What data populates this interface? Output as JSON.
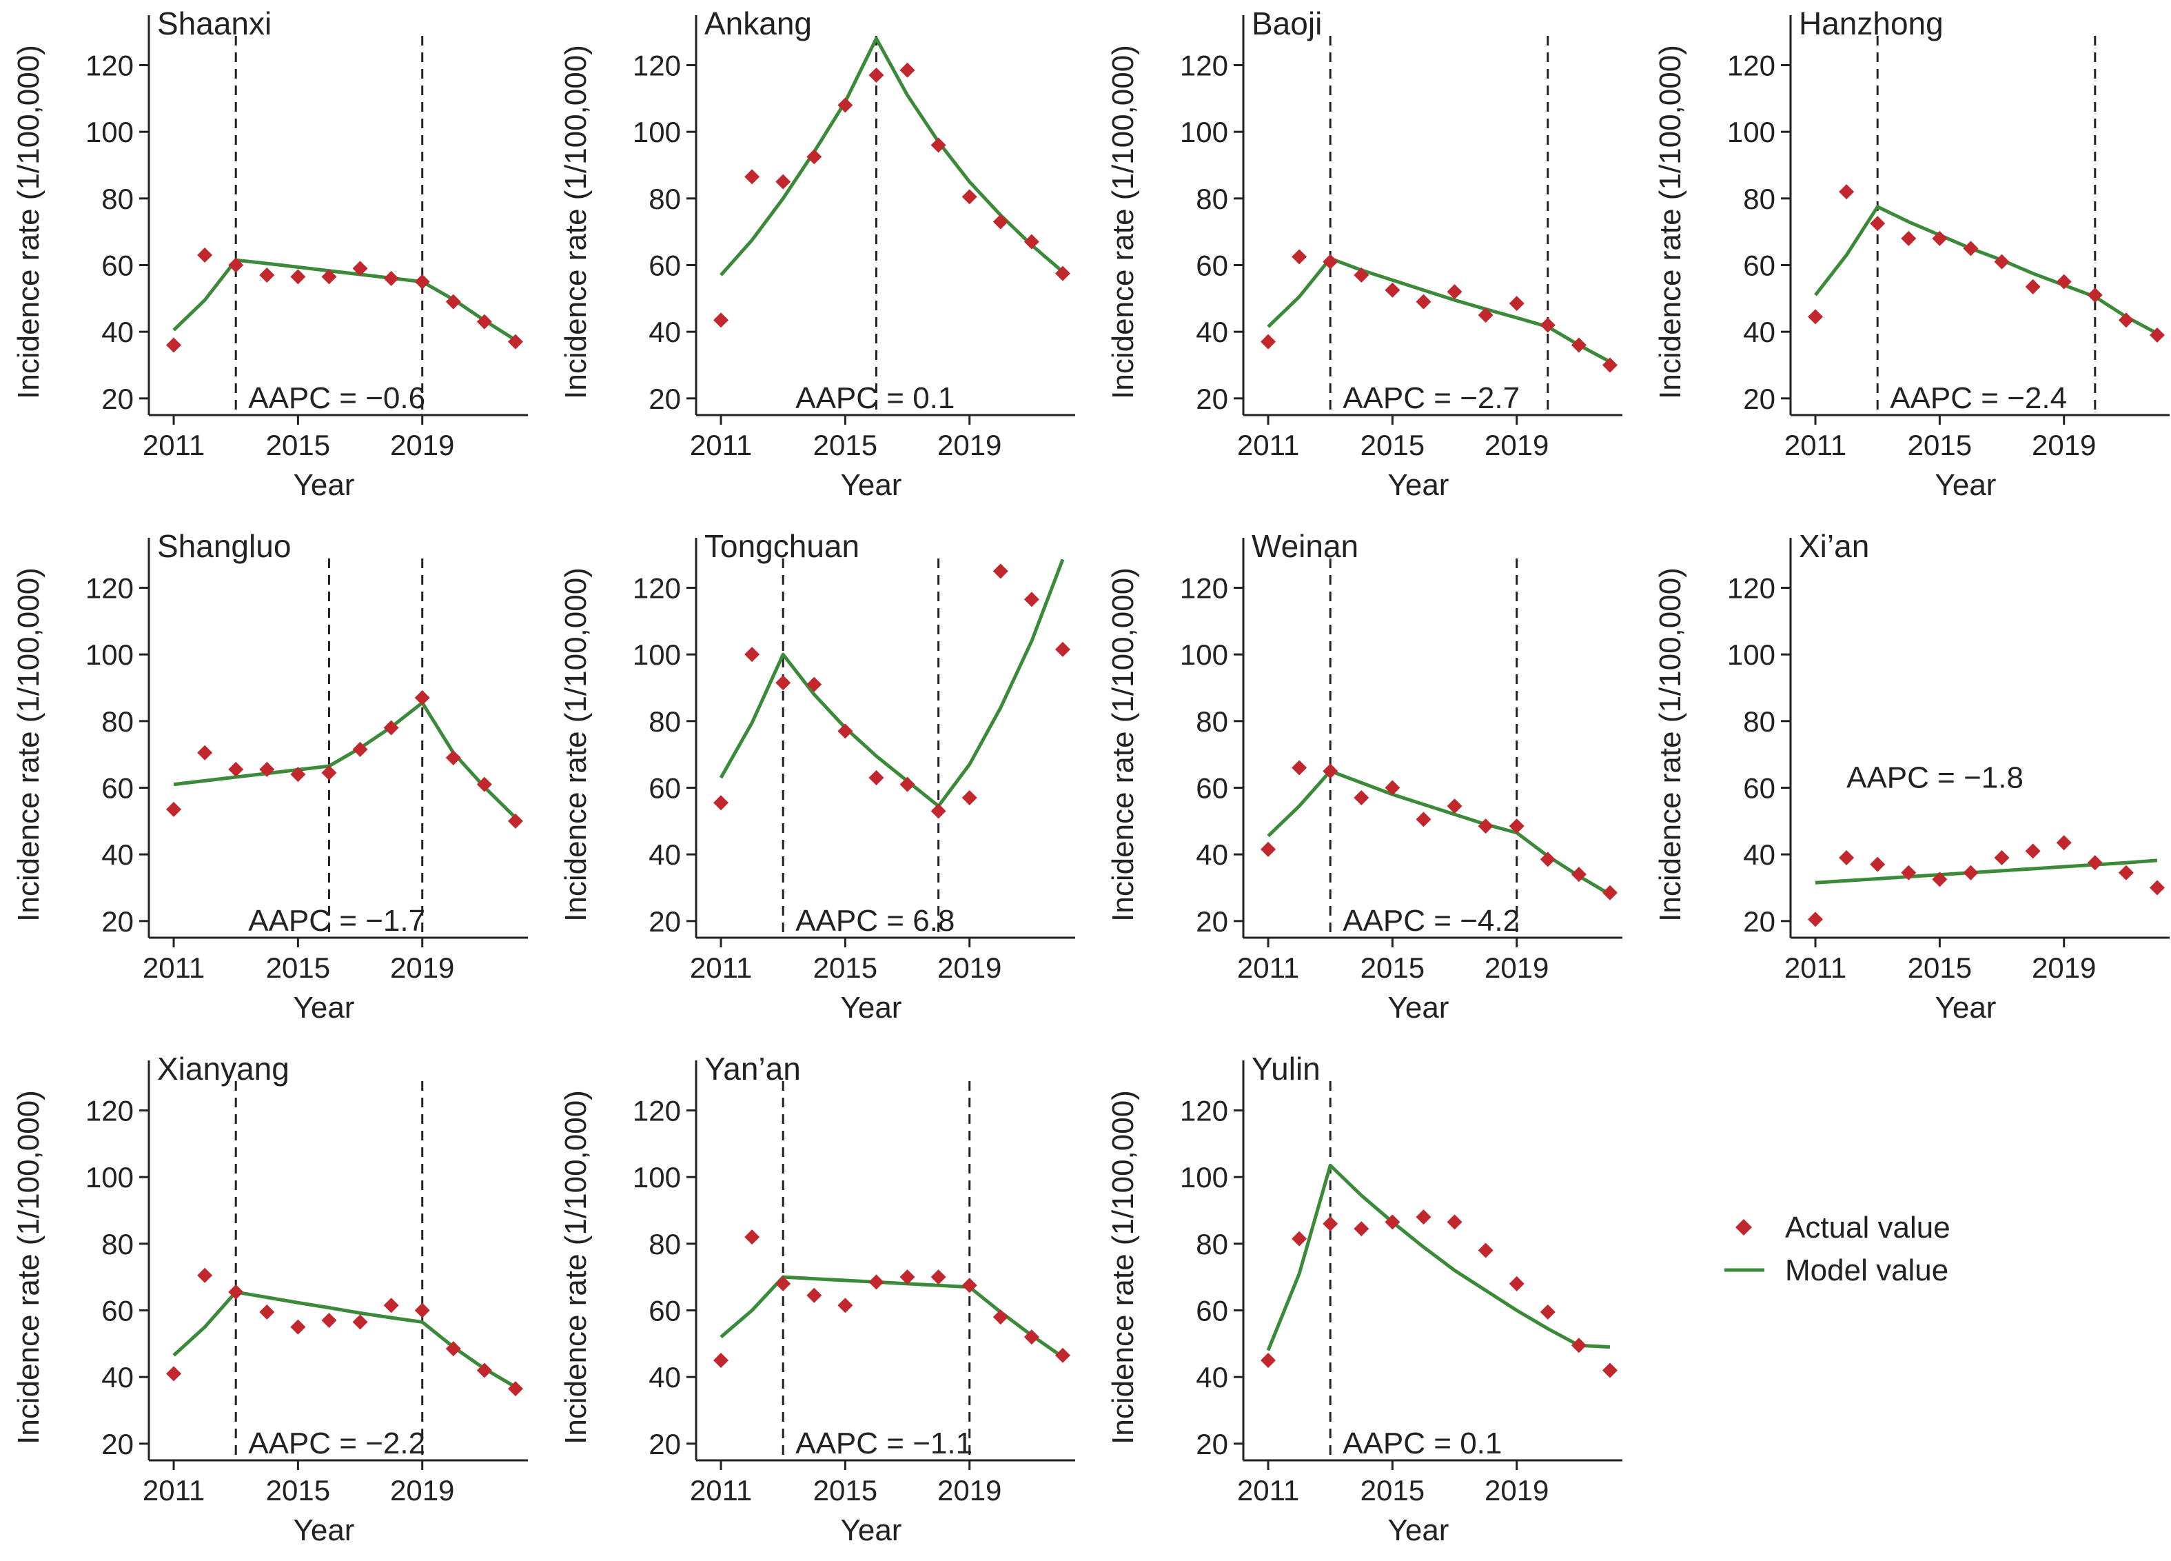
{
  "figure": {
    "xlabel": "Year",
    "ylabel": "Incidence rate (1/100,000)"
  },
  "legend": {
    "actual_label": "Actual value",
    "model_label": "Model value"
  },
  "colors": {
    "actual": "#c1272d",
    "model": "#3a8a3a",
    "axis": "#222222",
    "joinpoint": "#222222"
  },
  "chart_data": [
    {
      "type": "scatter",
      "title": "Shaanxi",
      "aapc_label": "AAPC = −0.6",
      "x": [
        2011,
        2012,
        2013,
        2014,
        2015,
        2016,
        2017,
        2018,
        2019,
        2020,
        2021,
        2022
      ],
      "xticks": [
        2011,
        2015,
        2019
      ],
      "yticks": [
        20,
        40,
        60,
        80,
        100,
        120
      ],
      "xlim": [
        2010.6,
        2022.4
      ],
      "ylim": [
        15,
        135
      ],
      "series": [
        {
          "name": "Actual value",
          "kind": "points",
          "values": [
            36,
            63,
            60,
            57,
            56.5,
            56.5,
            59,
            56,
            55,
            49,
            43,
            37
          ]
        },
        {
          "name": "Model value",
          "kind": "line",
          "values": [
            40.5,
            49.5,
            61.5,
            60.5,
            59.4,
            58.3,
            57.2,
            56.1,
            55,
            49.7,
            43.4,
            37.5
          ]
        }
      ],
      "joinpoints": [
        2013,
        2019
      ]
    },
    {
      "type": "scatter",
      "title": "Ankang",
      "aapc_label": "AAPC = 0.1",
      "x": [
        2011,
        2012,
        2013,
        2014,
        2015,
        2016,
        2017,
        2018,
        2019,
        2020,
        2021,
        2022
      ],
      "xticks": [
        2011,
        2015,
        2019
      ],
      "yticks": [
        20,
        40,
        60,
        80,
        100,
        120
      ],
      "xlim": [
        2010.6,
        2022.4
      ],
      "ylim": [
        15,
        135
      ],
      "series": [
        {
          "name": "Actual value",
          "kind": "points",
          "values": [
            43.5,
            86.5,
            85,
            92.5,
            108,
            117,
            118.5,
            96,
            80.5,
            73,
            67,
            57.5
          ]
        },
        {
          "name": "Model value",
          "kind": "line",
          "values": [
            57,
            67.5,
            80,
            94,
            109,
            128,
            111,
            97,
            85,
            75,
            66,
            58
          ]
        }
      ],
      "joinpoints": [
        2016
      ]
    },
    {
      "type": "scatter",
      "title": "Baoji",
      "aapc_label": "AAPC = −2.7",
      "x": [
        2011,
        2012,
        2013,
        2014,
        2015,
        2016,
        2017,
        2018,
        2019,
        2020,
        2021,
        2022
      ],
      "xticks": [
        2011,
        2015,
        2019
      ],
      "yticks": [
        20,
        40,
        60,
        80,
        100,
        120
      ],
      "xlim": [
        2010.6,
        2022.4
      ],
      "ylim": [
        15,
        135
      ],
      "series": [
        {
          "name": "Actual value",
          "kind": "points",
          "values": [
            37,
            62.5,
            61,
            57,
            52.5,
            49,
            52,
            45,
            48.5,
            42,
            36,
            30
          ]
        },
        {
          "name": "Model value",
          "kind": "line",
          "values": [
            41.5,
            50.5,
            62,
            58.5,
            55.5,
            52.5,
            49.5,
            46.8,
            44.2,
            41.5,
            36,
            31
          ]
        }
      ],
      "joinpoints": [
        2013,
        2020
      ]
    },
    {
      "type": "scatter",
      "title": "Hanzhong",
      "aapc_label": "AAPC = −2.4",
      "x": [
        2011,
        2012,
        2013,
        2014,
        2015,
        2016,
        2017,
        2018,
        2019,
        2020,
        2021,
        2022
      ],
      "xticks": [
        2011,
        2015,
        2019
      ],
      "yticks": [
        20,
        40,
        60,
        80,
        100,
        120
      ],
      "xlim": [
        2010.6,
        2022.4
      ],
      "ylim": [
        15,
        135
      ],
      "series": [
        {
          "name": "Actual value",
          "kind": "points",
          "values": [
            44.5,
            82,
            72.5,
            68,
            68,
            65,
            61,
            53.5,
            55,
            51,
            43.5,
            39
          ]
        },
        {
          "name": "Model value",
          "kind": "line",
          "values": [
            51,
            63,
            77.5,
            73,
            69,
            65,
            61.5,
            57.5,
            54,
            50.5,
            44.5,
            39.5
          ]
        }
      ],
      "joinpoints": [
        2013,
        2020
      ]
    },
    {
      "type": "scatter",
      "title": "Shangluo",
      "aapc_label": "AAPC = −1.7",
      "x": [
        2011,
        2012,
        2013,
        2014,
        2015,
        2016,
        2017,
        2018,
        2019,
        2020,
        2021,
        2022
      ],
      "xticks": [
        2011,
        2015,
        2019
      ],
      "yticks": [
        20,
        40,
        60,
        80,
        100,
        120
      ],
      "xlim": [
        2010.6,
        2022.4
      ],
      "ylim": [
        15,
        135
      ],
      "series": [
        {
          "name": "Actual value",
          "kind": "points",
          "values": [
            53.5,
            70.5,
            65.5,
            65.5,
            64,
            64.5,
            71.5,
            78,
            87,
            69,
            61,
            50
          ]
        },
        {
          "name": "Model value",
          "kind": "line",
          "values": [
            61,
            62.1,
            63.2,
            64.3,
            65.4,
            66.5,
            71.9,
            78.2,
            85.5,
            70.5,
            60.2,
            51
          ]
        }
      ],
      "joinpoints": [
        2016,
        2019
      ]
    },
    {
      "type": "scatter",
      "title": "Tongchuan",
      "aapc_label": "AAPC = 6.8",
      "x": [
        2011,
        2012,
        2013,
        2014,
        2015,
        2016,
        2017,
        2018,
        2019,
        2020,
        2021,
        2022
      ],
      "xticks": [
        2011,
        2015,
        2019
      ],
      "yticks": [
        20,
        40,
        60,
        80,
        100,
        120
      ],
      "xlim": [
        2010.6,
        2022.4
      ],
      "ylim": [
        15,
        135
      ],
      "series": [
        {
          "name": "Actual value",
          "kind": "points",
          "values": [
            55.5,
            100,
            91.5,
            91,
            77,
            63,
            61,
            53,
            57,
            125,
            116.5,
            101.5
          ]
        },
        {
          "name": "Model value",
          "kind": "line",
          "values": [
            63,
            79.5,
            100,
            88,
            78,
            69.5,
            62,
            54.5,
            67,
            84,
            104,
            128.5
          ]
        }
      ],
      "joinpoints": [
        2013,
        2018
      ]
    },
    {
      "type": "scatter",
      "title": "Weinan",
      "aapc_label": "AAPC = −4.2",
      "x": [
        2011,
        2012,
        2013,
        2014,
        2015,
        2016,
        2017,
        2018,
        2019,
        2020,
        2021,
        2022
      ],
      "xticks": [
        2011,
        2015,
        2019
      ],
      "yticks": [
        20,
        40,
        60,
        80,
        100,
        120
      ],
      "xlim": [
        2010.6,
        2022.4
      ],
      "ylim": [
        15,
        135
      ],
      "series": [
        {
          "name": "Actual value",
          "kind": "points",
          "values": [
            41.5,
            66,
            65,
            57,
            60,
            50.5,
            54.5,
            48.5,
            48.5,
            38.5,
            34,
            28.5
          ]
        },
        {
          "name": "Model value",
          "kind": "line",
          "values": [
            45.5,
            54.5,
            65,
            61.5,
            58,
            55,
            52,
            49,
            46.5,
            39.5,
            33.5,
            28
          ]
        }
      ],
      "joinpoints": [
        2013,
        2019
      ]
    },
    {
      "type": "scatter",
      "title": "Xi’an",
      "aapc_label": "AAPC = −1.8",
      "x": [
        2011,
        2012,
        2013,
        2014,
        2015,
        2016,
        2017,
        2018,
        2019,
        2020,
        2021,
        2022
      ],
      "xticks": [
        2011,
        2015,
        2019
      ],
      "yticks": [
        20,
        40,
        60,
        80,
        100,
        120
      ],
      "xlim": [
        2010.6,
        2022.4
      ],
      "ylim": [
        15,
        135
      ],
      "series": [
        {
          "name": "Actual value",
          "kind": "points",
          "values": [
            20.5,
            39,
            37,
            34.5,
            32.5,
            34.5,
            39,
            41,
            43.5,
            37.5,
            34.5,
            30
          ]
        },
        {
          "name": "Model value",
          "kind": "line",
          "values": [
            31.5,
            32.1,
            32.7,
            33.3,
            33.9,
            34.5,
            35.1,
            35.7,
            36.3,
            36.9,
            37.5,
            38.2
          ]
        }
      ],
      "joinpoints": []
    },
    {
      "type": "scatter",
      "title": "Xianyang",
      "aapc_label": "AAPC = −2.2",
      "x": [
        2011,
        2012,
        2013,
        2014,
        2015,
        2016,
        2017,
        2018,
        2019,
        2020,
        2021,
        2022
      ],
      "xticks": [
        2011,
        2015,
        2019
      ],
      "yticks": [
        20,
        40,
        60,
        80,
        100,
        120
      ],
      "xlim": [
        2010.6,
        2022.4
      ],
      "ylim": [
        15,
        135
      ],
      "series": [
        {
          "name": "Actual value",
          "kind": "points",
          "values": [
            41,
            70.5,
            65.5,
            59.5,
            55,
            57,
            56.5,
            61.5,
            60,
            48.5,
            42,
            36.5
          ]
        },
        {
          "name": "Model value",
          "kind": "line",
          "values": [
            46.5,
            55,
            65.5,
            63.9,
            62.3,
            60.8,
            59.2,
            57.8,
            56.5,
            49,
            42.5,
            37
          ]
        }
      ],
      "joinpoints": [
        2013,
        2019
      ]
    },
    {
      "type": "scatter",
      "title": "Yan’an",
      "aapc_label": "AAPC = −1.1",
      "x": [
        2011,
        2012,
        2013,
        2014,
        2015,
        2016,
        2017,
        2018,
        2019,
        2020,
        2021,
        2022
      ],
      "xticks": [
        2011,
        2015,
        2019
      ],
      "yticks": [
        20,
        40,
        60,
        80,
        100,
        120
      ],
      "xlim": [
        2010.6,
        2022.4
      ],
      "ylim": [
        15,
        135
      ],
      "series": [
        {
          "name": "Actual value",
          "kind": "points",
          "values": [
            45,
            82,
            68,
            64.5,
            61.5,
            68.5,
            70,
            70,
            67.5,
            58,
            52,
            46.5
          ]
        },
        {
          "name": "Model value",
          "kind": "line",
          "values": [
            52,
            60,
            70,
            69.5,
            69,
            68.5,
            68,
            67.5,
            67,
            59.5,
            52.5,
            46
          ]
        }
      ],
      "joinpoints": [
        2013,
        2019
      ]
    },
    {
      "type": "scatter",
      "title": "Yulin",
      "aapc_label": "AAPC = 0.1",
      "x": [
        2011,
        2012,
        2013,
        2014,
        2015,
        2016,
        2017,
        2018,
        2019,
        2020,
        2021,
        2022
      ],
      "xticks": [
        2011,
        2015,
        2019
      ],
      "yticks": [
        20,
        40,
        60,
        80,
        100,
        120
      ],
      "xlim": [
        2010.6,
        2022.4
      ],
      "ylim": [
        15,
        135
      ],
      "series": [
        {
          "name": "Actual value",
          "kind": "points",
          "values": [
            45,
            81.5,
            86,
            84.5,
            86.5,
            88,
            86.5,
            78,
            68,
            59.5,
            49.5,
            42
          ]
        },
        {
          "name": "Model value",
          "kind": "line",
          "values": [
            48,
            71,
            103.5,
            94.5,
            86.5,
            79,
            72,
            66,
            60,
            54.5,
            49.5,
            49
          ]
        }
      ],
      "joinpoints": [
        2013
      ]
    }
  ]
}
